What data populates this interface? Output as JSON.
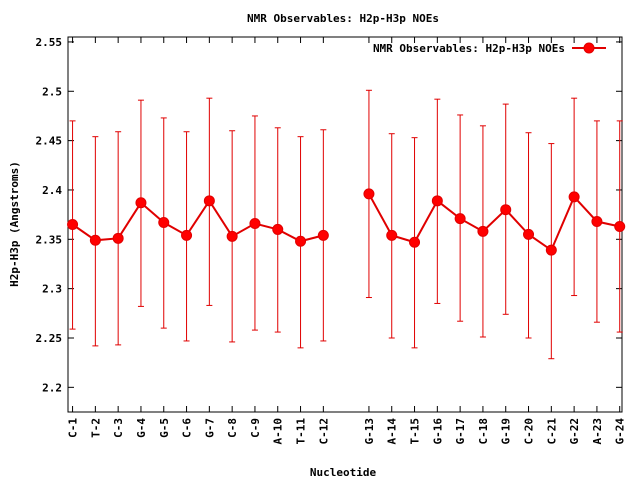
{
  "chart_data": {
    "type": "line",
    "title": "NMR Observables: H2p-H3p NOEs",
    "xlabel": "Nucleotide",
    "ylabel": "H2p-H3p (Angstroms)",
    "ylim": [
      2.175,
      2.555
    ],
    "yticks": [
      "2.2",
      "2.25",
      "2.3",
      "2.35",
      "2.4",
      "2.45",
      "2.5",
      "2.55"
    ],
    "grid": false,
    "legend_position": "top-right",
    "categories": [
      "C-1",
      "T-2",
      "C-3",
      "G-4",
      "G-5",
      "C-6",
      "G-7",
      "C-8",
      "C-9",
      "A-10",
      "T-11",
      "C-12",
      "G-13",
      "A-14",
      "T-15",
      "G-16",
      "G-17",
      "C-18",
      "G-19",
      "C-20",
      "C-21",
      "G-22",
      "A-23",
      "G-24"
    ],
    "x": [
      1,
      2,
      3,
      4,
      5,
      6,
      7,
      8,
      9,
      10,
      11,
      12,
      14,
      15,
      16,
      17,
      18,
      19,
      20,
      21,
      22,
      23,
      24,
      25
    ],
    "xlim": [
      0.8,
      25.1
    ],
    "series": [
      {
        "name": "NMR Observables: H2p-H3p NOEs",
        "color": "#e00000",
        "values": [
          2.365,
          2.349,
          2.351,
          2.387,
          2.367,
          2.354,
          2.389,
          2.353,
          2.366,
          2.36,
          2.348,
          2.354,
          2.396,
          2.354,
          2.347,
          2.389,
          2.371,
          2.358,
          2.38,
          2.355,
          2.339,
          2.393,
          2.368,
          2.363
        ],
        "err_low": [
          2.259,
          2.242,
          2.243,
          2.282,
          2.26,
          2.247,
          2.283,
          2.246,
          2.258,
          2.256,
          2.24,
          2.247,
          2.291,
          2.25,
          2.24,
          2.285,
          2.267,
          2.251,
          2.274,
          2.25,
          2.229,
          2.293,
          2.266,
          2.256
        ],
        "err_high": [
          2.47,
          2.454,
          2.459,
          2.491,
          2.473,
          2.459,
          2.493,
          2.46,
          2.475,
          2.463,
          2.454,
          2.461,
          2.501,
          2.457,
          2.453,
          2.492,
          2.476,
          2.465,
          2.487,
          2.458,
          2.447,
          2.493,
          2.47,
          2.47
        ]
      }
    ]
  }
}
